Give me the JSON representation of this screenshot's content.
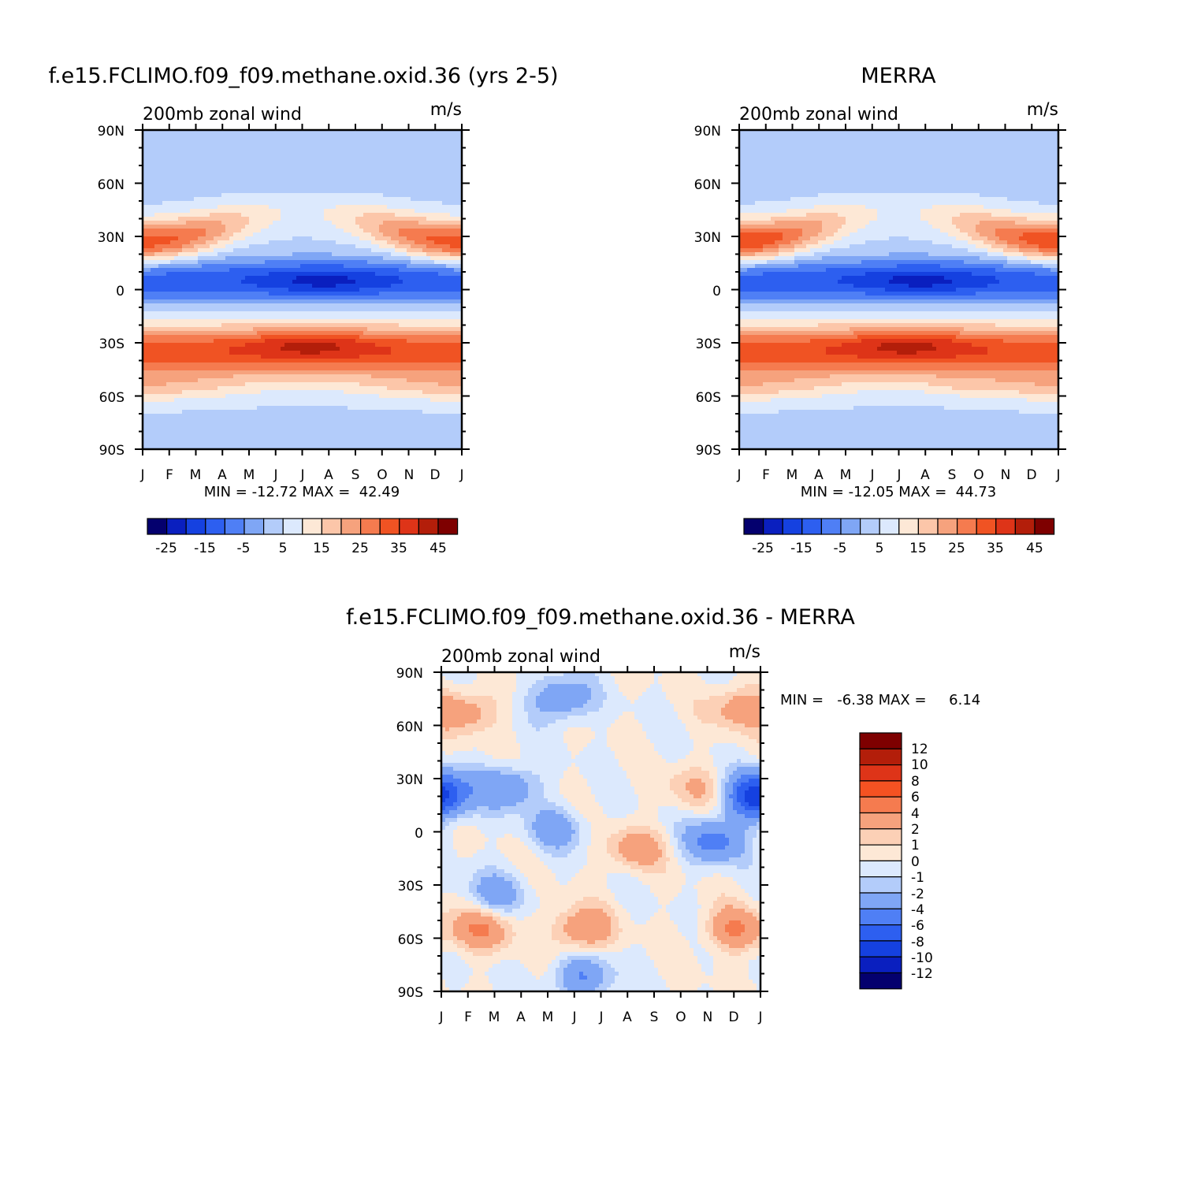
{
  "chart_data": [
    {
      "type": "heatmap",
      "title": "f.e15.FCLIMO.f09_f09.methane.oxid.36 (yrs 2-5)",
      "left_label": "200mb zonal wind",
      "right_label": "m/s",
      "x_ticks": [
        "J",
        "F",
        "M",
        "A",
        "M",
        "J",
        "J",
        "A",
        "S",
        "O",
        "N",
        "D",
        "J"
      ],
      "y_ticks": [
        "90N",
        "60N",
        "30N",
        "0",
        "30S",
        "60S",
        "90S"
      ],
      "min_max_text": "MIN = -12.72 MAX =  42.49",
      "stats": {
        "min": -12.72,
        "max": 42.49
      },
      "colorbar": {
        "orientation": "horizontal",
        "tick_labels": [
          "-25",
          "-15",
          "-5",
          "5",
          "15",
          "25",
          "35",
          "45"
        ],
        "colors": [
          "#04006e",
          "#0a1fbf",
          "#1541e0",
          "#2d5ff0",
          "#4f7ff5",
          "#7fa6f5",
          "#b3ccfa",
          "#dce9fd",
          "#fde8d6",
          "#fcc6a9",
          "#f6a27d",
          "#f57b4f",
          "#f05323",
          "#de3418",
          "#b31e0a",
          "#7e0000"
        ]
      },
      "features": [
        {
          "lat": 30,
          "month": 0.5,
          "value": 40
        },
        {
          "lat": 30,
          "month": 11.5,
          "value": 38
        },
        {
          "lat": 5,
          "month": 6.6,
          "value": -12
        },
        {
          "lat": -30,
          "month": 6.2,
          "value": 40
        },
        {
          "lat": -50,
          "month": 1.0,
          "value": 33
        },
        {
          "lat": -45,
          "month": 11.5,
          "value": 33
        },
        {
          "lat": 75,
          "month": 4.0,
          "value": 3
        }
      ]
    },
    {
      "type": "heatmap",
      "title": "MERRA",
      "left_label": "200mb zonal wind",
      "right_label": "m/s",
      "x_ticks": [
        "J",
        "F",
        "M",
        "A",
        "M",
        "J",
        "J",
        "A",
        "S",
        "O",
        "N",
        "D",
        "J"
      ],
      "y_ticks": [
        "90N",
        "60N",
        "30N",
        "0",
        "30S",
        "60S",
        "90S"
      ],
      "min_max_text": "MIN = -12.05 MAX =  44.73",
      "stats": {
        "min": -12.05,
        "max": 44.73
      },
      "colorbar": {
        "orientation": "horizontal",
        "tick_labels": [
          "-25",
          "-15",
          "-5",
          "5",
          "15",
          "25",
          "35",
          "45"
        ],
        "colors": [
          "#04006e",
          "#0a1fbf",
          "#1541e0",
          "#2d5ff0",
          "#4f7ff5",
          "#7fa6f5",
          "#b3ccfa",
          "#dce9fd",
          "#fde8d6",
          "#fcc6a9",
          "#f6a27d",
          "#f57b4f",
          "#f05323",
          "#de3418",
          "#b31e0a",
          "#7e0000"
        ]
      },
      "features": [
        {
          "lat": 30,
          "month": 0.5,
          "value": 43
        },
        {
          "lat": 30,
          "month": 11.5,
          "value": 40
        },
        {
          "lat": 5,
          "month": 7.0,
          "value": -11
        },
        {
          "lat": -30,
          "month": 6.0,
          "value": 42
        },
        {
          "lat": -48,
          "month": 11.8,
          "value": 33
        },
        {
          "lat": -53,
          "month": 8.0,
          "value": 33
        }
      ]
    },
    {
      "type": "heatmap",
      "title": "f.e15.FCLIMO.f09_f09.methane.oxid.36 - MERRA",
      "left_label": "200mb zonal wind",
      "right_label": "m/s",
      "x_ticks": [
        "J",
        "F",
        "M",
        "A",
        "M",
        "J",
        "J",
        "A",
        "S",
        "O",
        "N",
        "D",
        "J"
      ],
      "y_ticks": [
        "90N",
        "60N",
        "30N",
        "0",
        "30S",
        "60S",
        "90S"
      ],
      "min_max_text": "MIN =   -6.38 MAX =     6.14",
      "stats": {
        "min": -6.38,
        "max": 6.14
      },
      "colorbar": {
        "orientation": "vertical",
        "tick_labels": [
          "12",
          "10",
          "8",
          "6",
          "4",
          "2",
          "1",
          "0",
          "-1",
          "-2",
          "-4",
          "-6",
          "-8",
          "-10",
          "-12"
        ],
        "colors": [
          "#7e0000",
          "#b31e0a",
          "#de3418",
          "#f55222",
          "#f57b4f",
          "#f6a27d",
          "#fcd0b6",
          "#fde8d6",
          "#dce9fd",
          "#b3ccfa",
          "#7fa6f5",
          "#4f7ff5",
          "#2d5ff0",
          "#1541e0",
          "#0a1fbf",
          "#04006e"
        ]
      },
      "features": [
        {
          "lat": 68,
          "month": 1.0,
          "value": 3
        },
        {
          "lat": 75,
          "month": 4.5,
          "value": -4
        },
        {
          "lat": 25,
          "month": 2.5,
          "value": -4
        },
        {
          "lat": 23,
          "month": 0.0,
          "value": -5
        },
        {
          "lat": 2,
          "month": 4.3,
          "value": -3
        },
        {
          "lat": -10,
          "month": 7.3,
          "value": 3
        },
        {
          "lat": -55,
          "month": 1.5,
          "value": 4
        },
        {
          "lat": -55,
          "month": 5.3,
          "value": 4
        },
        {
          "lat": -55,
          "month": 11.0,
          "value": 4
        },
        {
          "lat": -5,
          "month": 10.3,
          "value": -5
        },
        {
          "lat": 18,
          "month": 11.8,
          "value": -5
        },
        {
          "lat": 25,
          "month": 9.5,
          "value": 2
        },
        {
          "lat": -82,
          "month": 5.3,
          "value": -4
        },
        {
          "lat": 70,
          "month": 11.2,
          "value": 3
        },
        {
          "lat": -35,
          "month": 2.0,
          "value": -3
        }
      ]
    }
  ]
}
